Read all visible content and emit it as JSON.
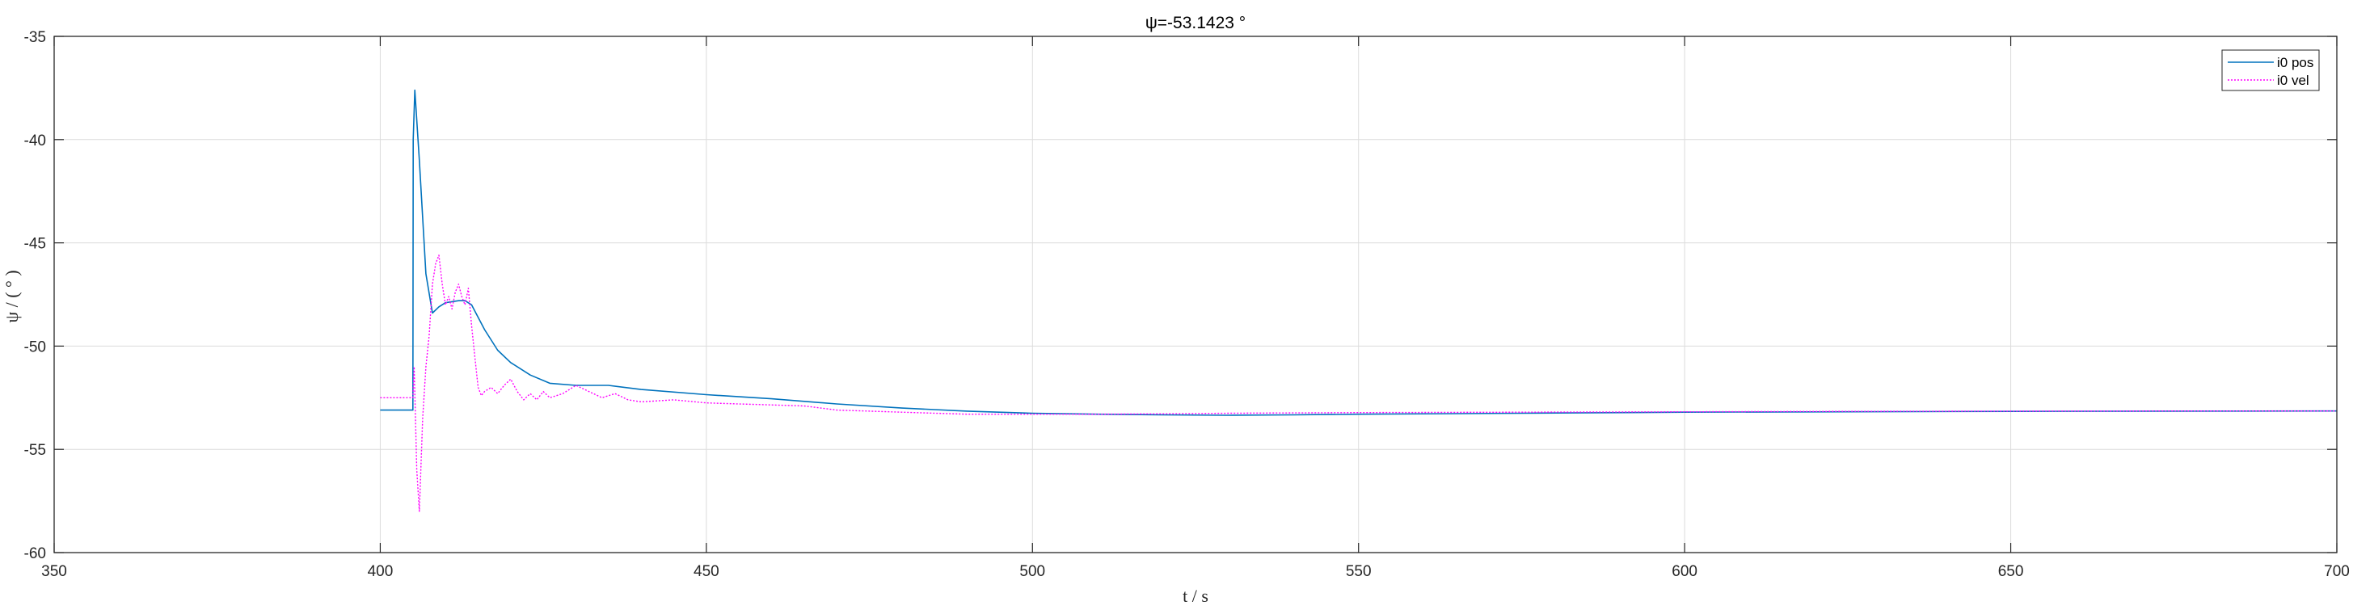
{
  "chart_data": {
    "type": "line",
    "title": "ψ=-53.1423 °",
    "xlabel": "t  / s",
    "ylabel": "ψ / ( ° )",
    "xlim": [
      350,
      700
    ],
    "ylim": [
      -60,
      -35
    ],
    "xticks": [
      350,
      400,
      450,
      500,
      550,
      600,
      650,
      700
    ],
    "yticks": [
      -60,
      -55,
      -50,
      -45,
      -40,
      -35
    ],
    "xtick_labels": [
      "350",
      "400",
      "450",
      "500",
      "550",
      "600",
      "650",
      "700"
    ],
    "ytick_labels": [
      "-60",
      "-55",
      "-50",
      "-45",
      "-40",
      "-35"
    ],
    "grid": true,
    "legend_position": "top-right",
    "series": [
      {
        "name": "i0 pos",
        "color": "#0072bd",
        "style": "solid",
        "x": [
          400,
          405,
          405.05,
          405.3,
          406,
          407,
          408,
          409,
          410,
          411,
          412,
          413,
          414,
          416,
          418,
          420,
          423,
          426,
          430,
          435,
          440,
          450,
          460,
          470,
          480,
          490,
          500,
          510,
          520,
          530,
          540,
          550,
          575,
          600,
          625,
          650,
          675,
          700
        ],
        "y": [
          -53.1,
          -53.1,
          -40.0,
          -37.6,
          -41.0,
          -46.5,
          -48.4,
          -48.1,
          -47.9,
          -47.85,
          -47.8,
          -47.8,
          -48.0,
          -49.2,
          -50.2,
          -50.8,
          -51.4,
          -51.8,
          -51.9,
          -51.9,
          -52.1,
          -52.35,
          -52.55,
          -52.8,
          -53.0,
          -53.15,
          -53.25,
          -53.3,
          -53.33,
          -53.35,
          -53.33,
          -53.3,
          -53.25,
          -53.2,
          -53.18,
          -53.16,
          -53.15,
          -53.14
        ]
      },
      {
        "name": "i0 vel",
        "color": "#ff00ff",
        "style": "dotted",
        "x": [
          400,
          405,
          405.2,
          405.6,
          406,
          406.5,
          407,
          407.5,
          408,
          408.5,
          409,
          409.5,
          410,
          410.5,
          411,
          411.5,
          412,
          412.5,
          413,
          413.5,
          414,
          414.5,
          415,
          415.5,
          416,
          417,
          418,
          419,
          420,
          421,
          422,
          423,
          424,
          425,
          426,
          428,
          430,
          432,
          434,
          436,
          438,
          440,
          445,
          450,
          455,
          460,
          465,
          470,
          480,
          490,
          500,
          510,
          520,
          530,
          550,
          575,
          600,
          625,
          650,
          675,
          700
        ],
        "y": [
          -52.5,
          -52.5,
          -51.0,
          -56.0,
          -58.0,
          -53.5,
          -51.0,
          -49.5,
          -47.0,
          -46.0,
          -45.6,
          -47.0,
          -48.0,
          -47.6,
          -48.2,
          -47.4,
          -47.0,
          -47.6,
          -48.0,
          -47.2,
          -49.0,
          -50.5,
          -52.0,
          -52.4,
          -52.2,
          -52.0,
          -52.3,
          -51.9,
          -51.6,
          -52.2,
          -52.6,
          -52.3,
          -52.6,
          -52.2,
          -52.5,
          -52.3,
          -51.9,
          -52.2,
          -52.5,
          -52.3,
          -52.6,
          -52.7,
          -52.6,
          -52.75,
          -52.8,
          -52.85,
          -52.9,
          -53.1,
          -53.2,
          -53.3,
          -53.3,
          -53.3,
          -53.28,
          -53.25,
          -53.22,
          -53.2,
          -53.18,
          -53.16,
          -53.15,
          -53.14,
          -53.14
        ]
      }
    ]
  }
}
